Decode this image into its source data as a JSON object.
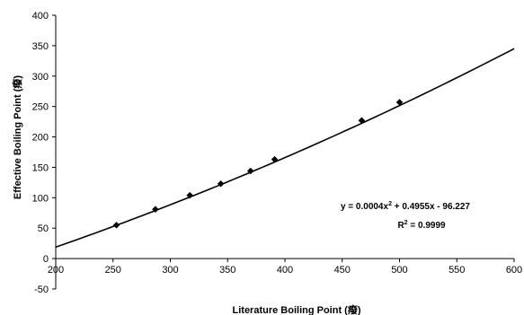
{
  "chart_data": {
    "type": "scatter",
    "xlabel": "Literature Boiling Point (癈)",
    "ylabel": "Effective Boiling Point (癈)",
    "xlim": [
      200,
      600
    ],
    "ylim": [
      -50,
      400
    ],
    "x_ticks": [
      "200",
      "250",
      "300",
      "350",
      "400",
      "450",
      "500",
      "550",
      "600"
    ],
    "y_ticks": [
      "-50",
      "0",
      "50",
      "100",
      "150",
      "200",
      "250",
      "300",
      "350",
      "400"
    ],
    "grid": false,
    "legend": "none",
    "series": [
      {
        "marker": "diamond",
        "points": [
          {
            "x": 253,
            "y": 55
          },
          {
            "x": 287,
            "y": 81
          },
          {
            "x": 317,
            "y": 104
          },
          {
            "x": 344,
            "y": 123
          },
          {
            "x": 370,
            "y": 144
          },
          {
            "x": 391,
            "y": 163
          },
          {
            "x": 467,
            "y": 227
          },
          {
            "x": 500,
            "y": 257
          }
        ]
      }
    ],
    "trendline": {
      "kind": "polynomial",
      "coefficients": [
        0.0004,
        0.4955,
        -96.227
      ],
      "x_range": [
        200,
        600
      ],
      "equation": {
        "y_part": "y = 0.0004x",
        "exp": "2",
        "rest": " + 0.4955x - 96.227"
      },
      "r2": {
        "r_part": "R",
        "exp": "2",
        "rest": " = 0.9999"
      }
    },
    "colors": {
      "line": "#000000",
      "marker": "#000000"
    }
  }
}
